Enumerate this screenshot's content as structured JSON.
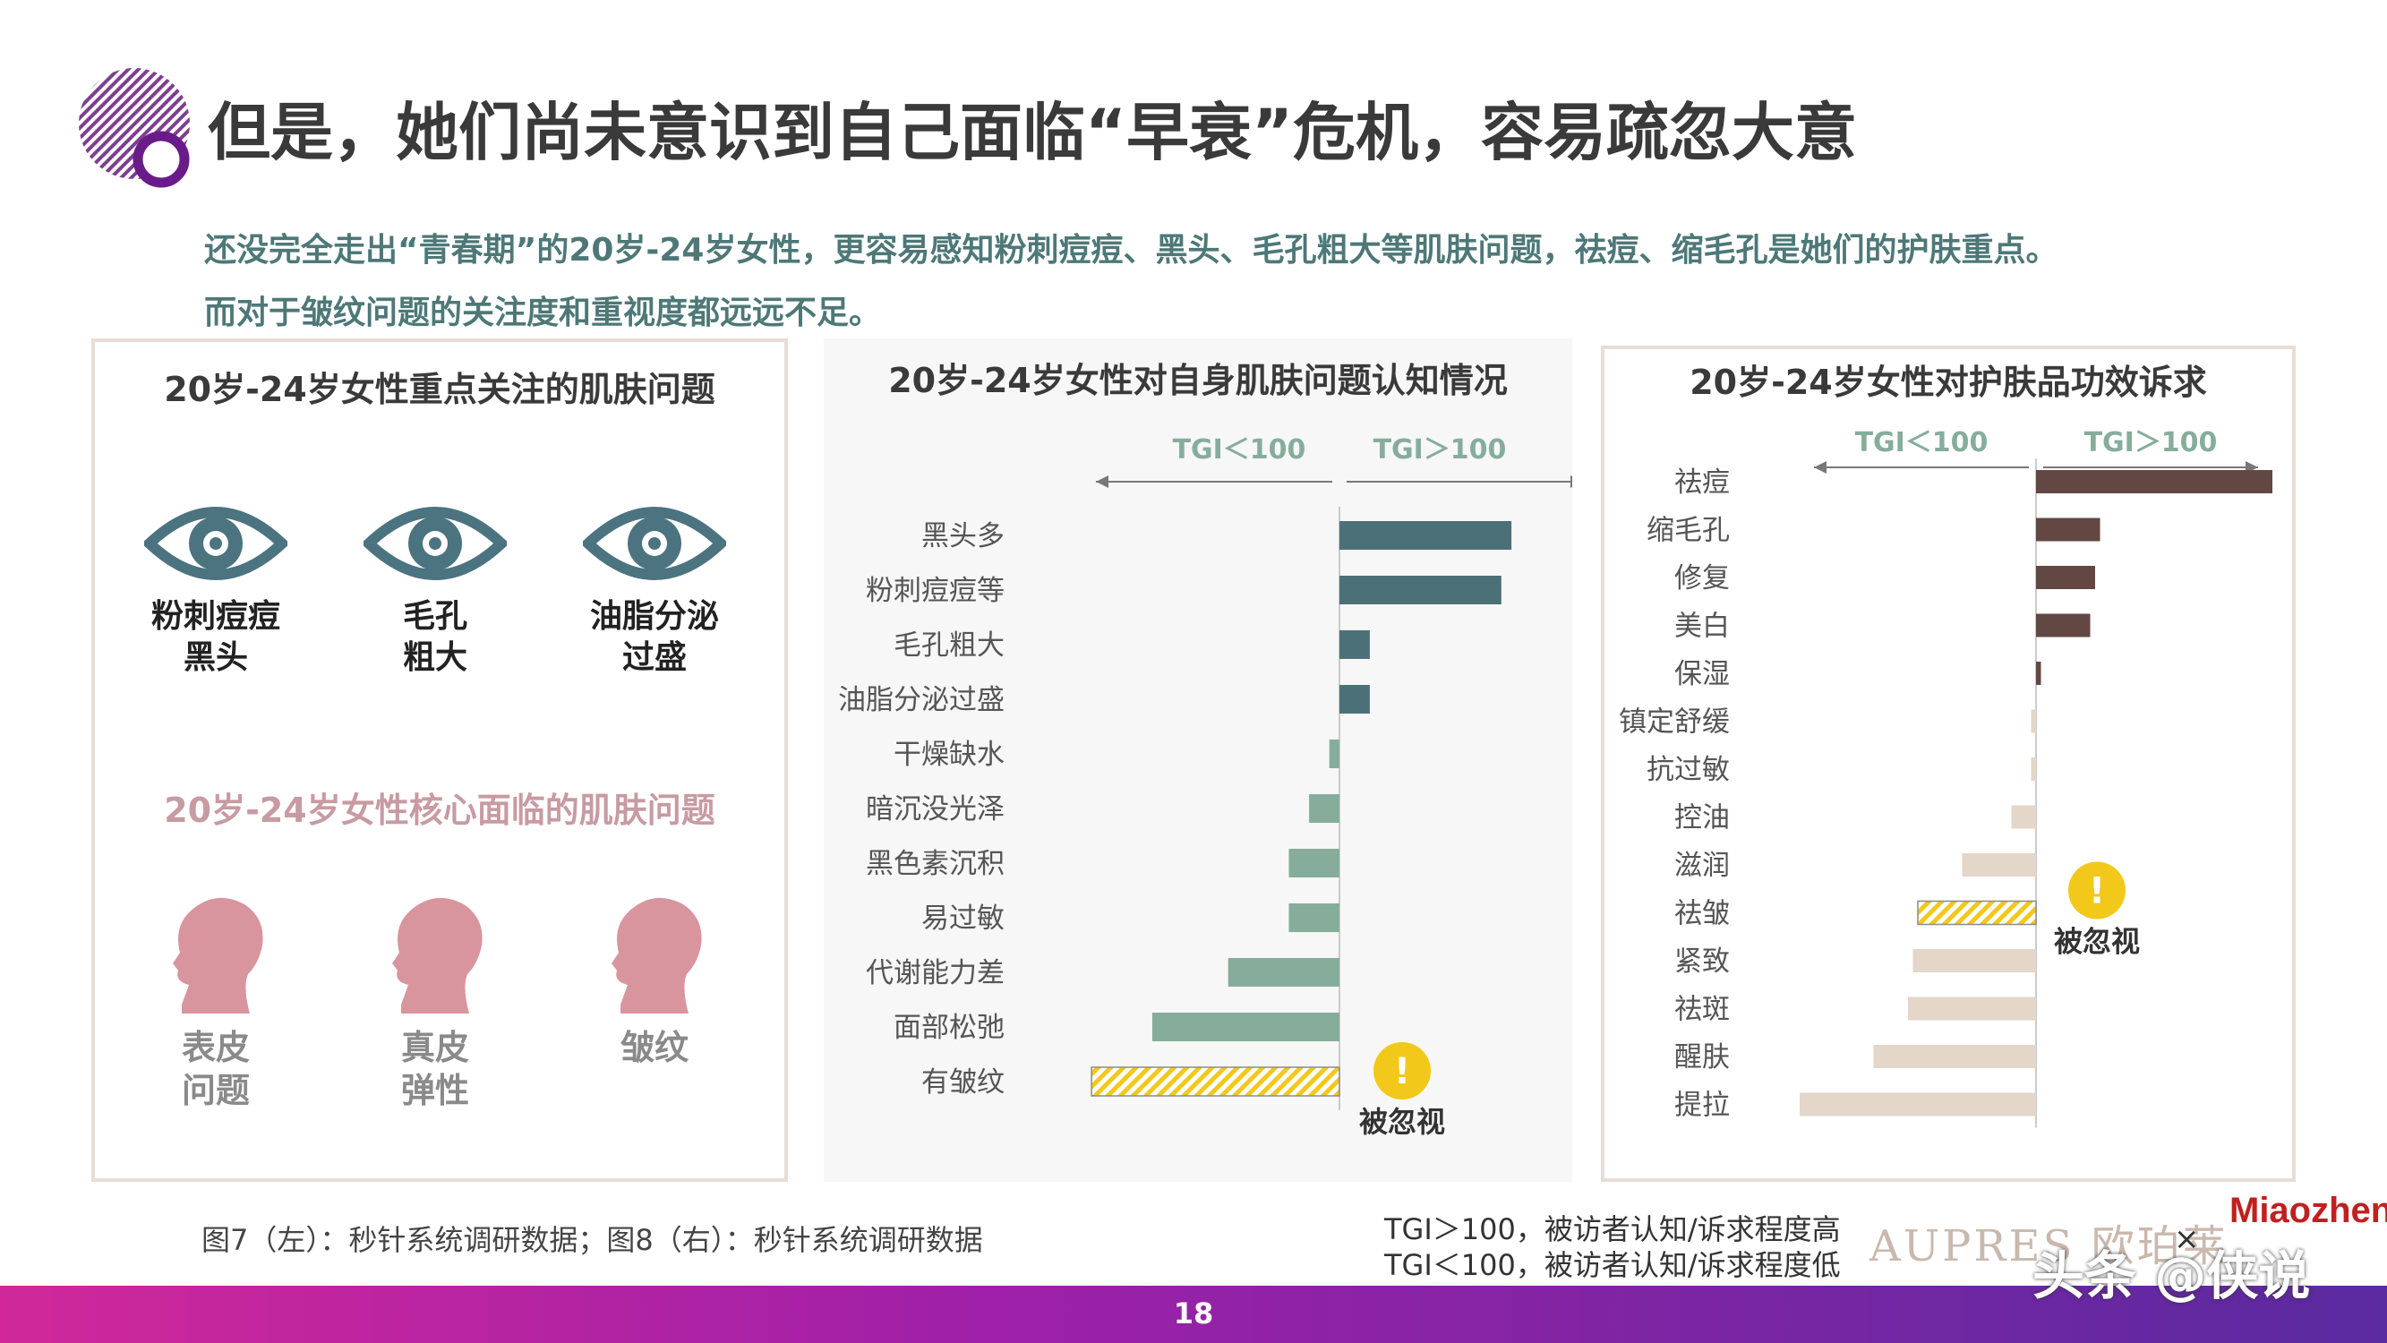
{
  "slide": {
    "title": "但是，她们尚未意识到自己面临“早衰”危机，容易疏忽大意",
    "subtitle_line1": "还没完全走出“青春期”的20岁-24岁女性，更容易感知粉刺痘痘、黑头、毛孔粗大等肌肤问题，祛痘、缩毛孔是她们的护肤重点。",
    "subtitle_line2": "而对于皱纹问题的关注度和重视度都远远不足。",
    "page_number": "18",
    "source_note": "图7（左）：秒针系统调研数据；图8（右）：秒针系统调研数据",
    "tgi_note_high": "TGI＞100，被访者认知/诉求程度高",
    "tgi_note_low": "TGI＜100，被访者认知/诉求程度低",
    "brand_aupres": "AUPRES 欧珀莱",
    "brand_x": "×",
    "brand_miaozhen": "Miaozhen",
    "watermark": "头条 @侠说"
  },
  "left_panel": {
    "title": "20岁-24岁女性重点关注的肌肤问题",
    "focus_issues": [
      {
        "label": "粉刺痘痘\n黑头",
        "icon": "eye-icon"
      },
      {
        "label": "毛孔\n粗大",
        "icon": "eye-icon"
      },
      {
        "label": "油脂分泌\n过盛",
        "icon": "eye-icon"
      }
    ],
    "core_title": "20岁-24岁女性核心面临的肌肤问题",
    "core_issues": [
      {
        "label": "表皮\n问题",
        "icon": "woman-head-icon"
      },
      {
        "label": "真皮\n弹性",
        "icon": "woman-head-icon"
      },
      {
        "label": "皱纹",
        "icon": "woman-head-icon"
      }
    ],
    "colors": {
      "eye": "#4c7380",
      "head": "#d8959e"
    }
  },
  "chart_data": [
    {
      "type": "bar",
      "orientation": "horizontal",
      "title": "20岁-24岁女性对自身肌肤问题认知情况",
      "baseline": 100,
      "direction_labels": [
        "TGI＜100",
        "TGI＞100"
      ],
      "categories": [
        "黑头多",
        "粉刺痘痘等",
        "毛孔粗大",
        "油脂分泌过盛",
        "干燥缺水",
        "暗沉没光泽",
        "黑色素沉积",
        "易过敏",
        "代谢能力差",
        "面部松弛",
        "有皱纹"
      ],
      "values": [
        134,
        132,
        106,
        106,
        98,
        94,
        90,
        90,
        78,
        63,
        51
      ],
      "highlight": {
        "category": "有皱纹",
        "label": "被忽视"
      },
      "colors": {
        "above": "#4c7078",
        "below": "#86ad9b",
        "highlight": "#f2c81a"
      }
    },
    {
      "type": "bar",
      "orientation": "horizontal",
      "title": "20岁-24岁女性对护肤品功效诉求",
      "baseline": 100,
      "direction_labels": [
        "TGI＜100",
        "TGI＞100"
      ],
      "categories": [
        "祛痘",
        "缩毛孔",
        "修复",
        "美白",
        "保湿",
        "镇定舒缓",
        "抗过敏",
        "控油",
        "滋润",
        "祛皱",
        "紧致",
        "祛斑",
        "醒肤",
        "提拉"
      ],
      "values": [
        148,
        113,
        112,
        111,
        101,
        99,
        99,
        95,
        85,
        76,
        75,
        74,
        67,
        52
      ],
      "highlight": {
        "category": "祛皱",
        "label": "被忽视"
      },
      "colors": {
        "above": "#634742",
        "below": "#e4d6c8",
        "highlight": "#f2c81a"
      }
    }
  ]
}
